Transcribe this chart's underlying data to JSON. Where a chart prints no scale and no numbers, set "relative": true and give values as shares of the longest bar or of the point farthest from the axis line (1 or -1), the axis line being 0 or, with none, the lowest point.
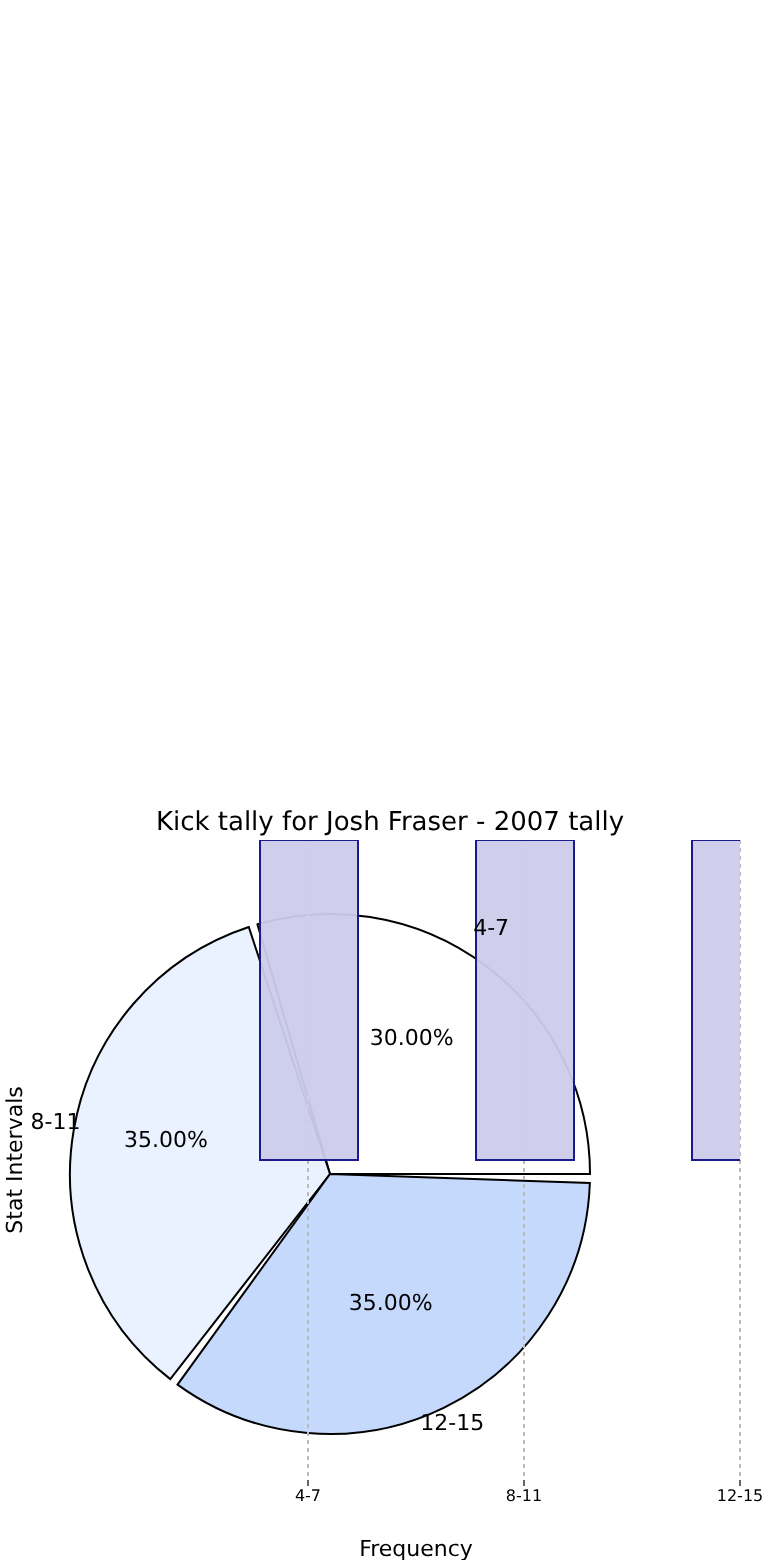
{
  "chart_data": [
    {
      "type": "pie",
      "title": "Kick tally for Josh Fraser - 2007 tally",
      "categories": [
        "4-7",
        "8-11",
        "12-15"
      ],
      "values": [
        30,
        35,
        35
      ],
      "colors": [
        "#ffffff",
        "#eaf1ff",
        "#c5d9fd"
      ],
      "value_labels": [
        "30.00%",
        "35.00%",
        "35.00%"
      ]
    },
    {
      "type": "bar",
      "categories": [
        "4-7",
        "8-11",
        "12-15"
      ],
      "values": [
        1,
        1,
        1
      ],
      "color": "#ccccea",
      "relative": true,
      "xlabel": "Frequency",
      "ylabel": "Stat Intervals",
      "grid": "x"
    }
  ]
}
